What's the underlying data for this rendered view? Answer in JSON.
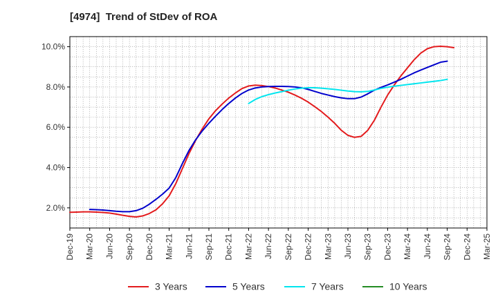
{
  "chart_data": {
    "type": "line",
    "title": "[4974]  Trend of StDev of ROA",
    "xlabel": "",
    "ylabel": "",
    "ylim": [
      1.0,
      10.5
    ],
    "y_ticks": [
      2.0,
      4.0,
      6.0,
      8.0,
      10.0
    ],
    "y_tick_labels": [
      "2.0%",
      "4.0%",
      "6.0%",
      "8.0%",
      "10.0%"
    ],
    "x_tick_labels": [
      "Dec-19",
      "Mar-20",
      "Jun-20",
      "Sep-20",
      "Dec-20",
      "Mar-21",
      "Jun-21",
      "Sep-21",
      "Dec-21",
      "Mar-22",
      "Jun-22",
      "Sep-22",
      "Dec-22",
      "Mar-23",
      "Jun-23",
      "Sep-23",
      "Dec-23",
      "Mar-24",
      "Jun-24",
      "Sep-24",
      "Dec-24",
      "Mar-25"
    ],
    "grid": true,
    "legend_position": "bottom",
    "series": [
      {
        "name": "3 Years",
        "color": "#e31a1c",
        "points": [
          [
            "Dec-19",
            1.78
          ],
          [
            "Jan-20",
            1.79
          ],
          [
            "Feb-20",
            1.8
          ],
          [
            "Mar-20",
            1.8
          ],
          [
            "Apr-20",
            1.79
          ],
          [
            "May-20",
            1.77
          ],
          [
            "Jun-20",
            1.74
          ],
          [
            "Jul-20",
            1.69
          ],
          [
            "Aug-20",
            1.63
          ],
          [
            "Sep-20",
            1.58
          ],
          [
            "Oct-20",
            1.55
          ],
          [
            "Nov-20",
            1.6
          ],
          [
            "Dec-20",
            1.72
          ],
          [
            "Jan-21",
            1.9
          ],
          [
            "Feb-21",
            2.2
          ],
          [
            "Mar-21",
            2.6
          ],
          [
            "Apr-21",
            3.2
          ],
          [
            "May-21",
            3.95
          ],
          [
            "Jun-21",
            4.7
          ],
          [
            "Jul-21",
            5.35
          ],
          [
            "Aug-21",
            5.92
          ],
          [
            "Sep-21",
            6.42
          ],
          [
            "Oct-21",
            6.82
          ],
          [
            "Nov-21",
            7.15
          ],
          [
            "Dec-21",
            7.45
          ],
          [
            "Jan-22",
            7.7
          ],
          [
            "Feb-22",
            7.92
          ],
          [
            "Mar-22",
            8.05
          ],
          [
            "Apr-22",
            8.09
          ],
          [
            "May-22",
            8.07
          ],
          [
            "Jun-22",
            8.02
          ],
          [
            "Jul-22",
            7.95
          ],
          [
            "Aug-22",
            7.85
          ],
          [
            "Sep-22",
            7.74
          ],
          [
            "Oct-22",
            7.6
          ],
          [
            "Nov-22",
            7.44
          ],
          [
            "Dec-22",
            7.25
          ],
          [
            "Jan-23",
            7.02
          ],
          [
            "Feb-23",
            6.78
          ],
          [
            "Mar-23",
            6.5
          ],
          [
            "Apr-23",
            6.2
          ],
          [
            "May-23",
            5.85
          ],
          [
            "Jun-23",
            5.6
          ],
          [
            "Jul-23",
            5.5
          ],
          [
            "Aug-23",
            5.55
          ],
          [
            "Sep-23",
            5.85
          ],
          [
            "Oct-23",
            6.35
          ],
          [
            "Nov-23",
            7.0
          ],
          [
            "Dec-23",
            7.6
          ],
          [
            "Jan-24",
            8.1
          ],
          [
            "Feb-24",
            8.55
          ],
          [
            "Mar-24",
            8.95
          ],
          [
            "Apr-24",
            9.35
          ],
          [
            "May-24",
            9.68
          ],
          [
            "Jun-24",
            9.9
          ],
          [
            "Jul-24",
            10.0
          ],
          [
            "Aug-24",
            10.02
          ],
          [
            "Sep-24",
            10.0
          ],
          [
            "Oct-24",
            9.95
          ]
        ]
      },
      {
        "name": "5 Years",
        "color": "#0000cc",
        "points": [
          [
            "Mar-20",
            1.92
          ],
          [
            "Apr-20",
            1.91
          ],
          [
            "May-20",
            1.89
          ],
          [
            "Jun-20",
            1.86
          ],
          [
            "Jul-20",
            1.83
          ],
          [
            "Aug-20",
            1.81
          ],
          [
            "Sep-20",
            1.81
          ],
          [
            "Oct-20",
            1.86
          ],
          [
            "Nov-20",
            1.98
          ],
          [
            "Dec-20",
            2.18
          ],
          [
            "Jan-21",
            2.42
          ],
          [
            "Feb-21",
            2.68
          ],
          [
            "Mar-21",
            2.98
          ],
          [
            "Apr-21",
            3.5
          ],
          [
            "May-21",
            4.2
          ],
          [
            "Jun-21",
            4.85
          ],
          [
            "Jul-21",
            5.38
          ],
          [
            "Aug-21",
            5.82
          ],
          [
            "Sep-21",
            6.2
          ],
          [
            "Oct-21",
            6.55
          ],
          [
            "Nov-21",
            6.88
          ],
          [
            "Dec-21",
            7.18
          ],
          [
            "Jan-22",
            7.45
          ],
          [
            "Feb-22",
            7.68
          ],
          [
            "Mar-22",
            7.85
          ],
          [
            "Apr-22",
            7.95
          ],
          [
            "May-22",
            8.0
          ],
          [
            "Jun-22",
            8.02
          ],
          [
            "Jul-22",
            8.03
          ],
          [
            "Aug-22",
            8.03
          ],
          [
            "Sep-22",
            8.02
          ],
          [
            "Oct-22",
            8.0
          ],
          [
            "Nov-22",
            7.96
          ],
          [
            "Dec-22",
            7.88
          ],
          [
            "Jan-23",
            7.78
          ],
          [
            "Feb-23",
            7.68
          ],
          [
            "Mar-23",
            7.6
          ],
          [
            "Apr-23",
            7.52
          ],
          [
            "May-23",
            7.46
          ],
          [
            "Jun-23",
            7.42
          ],
          [
            "Jul-23",
            7.42
          ],
          [
            "Aug-23",
            7.5
          ],
          [
            "Sep-23",
            7.66
          ],
          [
            "Oct-23",
            7.84
          ],
          [
            "Nov-23",
            7.98
          ],
          [
            "Dec-23",
            8.1
          ],
          [
            "Jan-24",
            8.24
          ],
          [
            "Feb-24",
            8.38
          ],
          [
            "Mar-24",
            8.54
          ],
          [
            "Apr-24",
            8.7
          ],
          [
            "May-24",
            8.84
          ],
          [
            "Jun-24",
            8.97
          ],
          [
            "Jul-24",
            9.1
          ],
          [
            "Aug-24",
            9.23
          ],
          [
            "Sep-24",
            9.28
          ]
        ]
      },
      {
        "name": "7 Years",
        "color": "#00e5ee",
        "points": [
          [
            "Mar-22",
            7.18
          ],
          [
            "Apr-22",
            7.38
          ],
          [
            "May-22",
            7.52
          ],
          [
            "Jun-22",
            7.62
          ],
          [
            "Jul-22",
            7.7
          ],
          [
            "Aug-22",
            7.77
          ],
          [
            "Sep-22",
            7.84
          ],
          [
            "Oct-22",
            7.9
          ],
          [
            "Nov-22",
            7.94
          ],
          [
            "Dec-22",
            7.96
          ],
          [
            "Jan-23",
            7.96
          ],
          [
            "Feb-23",
            7.94
          ],
          [
            "Mar-23",
            7.91
          ],
          [
            "Apr-23",
            7.88
          ],
          [
            "May-23",
            7.84
          ],
          [
            "Jun-23",
            7.8
          ],
          [
            "Jul-23",
            7.77
          ],
          [
            "Aug-23",
            7.76
          ],
          [
            "Sep-23",
            7.78
          ],
          [
            "Oct-23",
            7.85
          ],
          [
            "Nov-23",
            7.93
          ],
          [
            "Dec-23",
            7.99
          ],
          [
            "Jan-24",
            8.04
          ],
          [
            "Feb-24",
            8.08
          ],
          [
            "Mar-24",
            8.12
          ],
          [
            "Apr-24",
            8.16
          ],
          [
            "May-24",
            8.2
          ],
          [
            "Jun-24",
            8.24
          ],
          [
            "Jul-24",
            8.28
          ],
          [
            "Aug-24",
            8.32
          ],
          [
            "Sep-24",
            8.38
          ]
        ]
      },
      {
        "name": "10 Years",
        "color": "#228b22",
        "points": []
      }
    ]
  }
}
